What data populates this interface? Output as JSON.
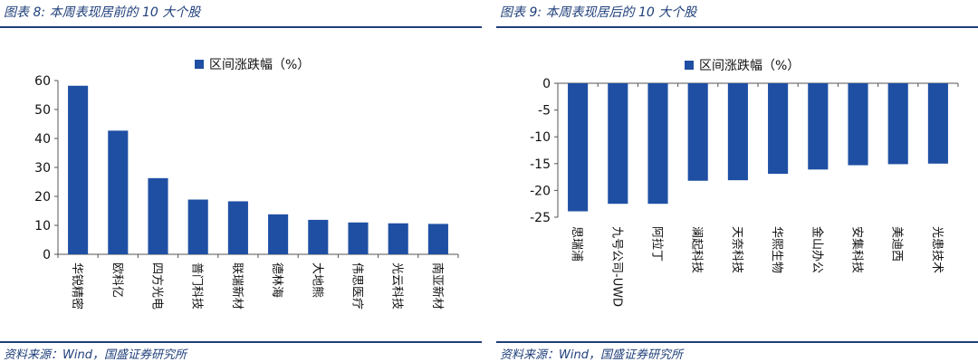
{
  "figures": [
    {
      "title": "图表 8:  本周表现居前的 10 大个股",
      "source": "资料来源：Wind，国盛证券研究所"
    },
    {
      "title": "图表 9:  本周表现居后的 10 大个股",
      "source": "资料来源：Wind，国盛证券研究所"
    }
  ],
  "chart_data": [
    {
      "type": "bar",
      "categories": [
        "华锐精密",
        "欧科亿",
        "四方光电",
        "普门科技",
        "联瑞新材",
        "德林海",
        "大地熊",
        "伟思医疗",
        "光云科技",
        "南亚新材"
      ],
      "series": [
        {
          "name": "区间涨跌幅（%）",
          "values": [
            58.2,
            42.7,
            26.3,
            18.9,
            18.3,
            13.8,
            11.9,
            11.0,
            10.7,
            10.5
          ]
        }
      ],
      "ylim": [
        0,
        60
      ],
      "yticks": [
        0,
        10,
        20,
        30,
        40,
        50,
        60
      ],
      "color": "#1f4fa3",
      "legend_position": "top-center",
      "grid": false
    },
    {
      "type": "bar",
      "categories": [
        "思瑞浦",
        "九号公司-UWD",
        "阿拉丁",
        "澜起科技",
        "天奈科技",
        "华熙生物",
        "金山办公",
        "安集科技",
        "美迪西",
        "光患技术"
      ],
      "series": [
        {
          "name": "区间涨跌幅（%）",
          "values": [
            -23.9,
            -22.5,
            -22.5,
            -18.2,
            -18.1,
            -16.9,
            -16.1,
            -15.3,
            -15.1,
            -15.0
          ]
        }
      ],
      "ylim": [
        -25,
        0
      ],
      "yticks": [
        0,
        -5,
        -10,
        -15,
        -20,
        -25
      ],
      "color": "#1f4fa3",
      "legend_position": "top-center",
      "grid": false
    }
  ]
}
